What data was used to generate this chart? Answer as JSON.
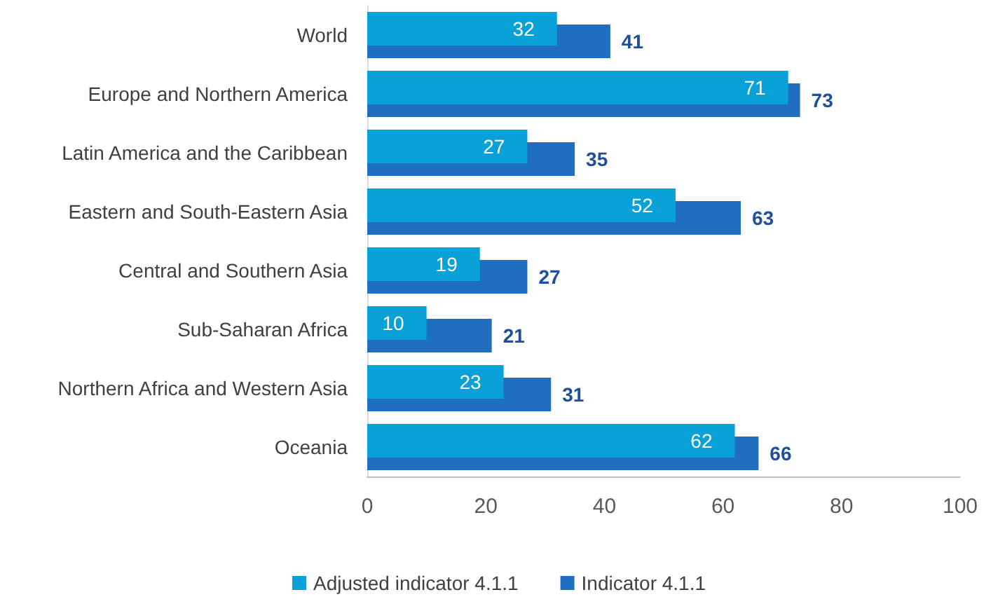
{
  "chart_data": {
    "type": "bar",
    "orientation": "horizontal",
    "categories": [
      "World",
      "Europe and Northern America",
      "Latin America and the Caribbean",
      "Eastern and South-Eastern Asia",
      "Central and Southern Asia",
      "Sub-Saharan Africa",
      "Northern Africa and Western Asia",
      "Oceania"
    ],
    "series": [
      {
        "name": "Adjusted indicator 4.1.1",
        "color": "#0aa0d8",
        "values": [
          32,
          71,
          27,
          52,
          19,
          10,
          23,
          62
        ]
      },
      {
        "name": "Indicator 4.1.1",
        "color": "#1f6ebf",
        "values": [
          41,
          73,
          35,
          63,
          27,
          21,
          31,
          66
        ]
      }
    ],
    "xlim": [
      0,
      100
    ],
    "xticks": [
      0,
      20,
      40,
      60,
      80,
      100
    ],
    "grid": false,
    "legend": "bottom",
    "data_labels": true
  }
}
